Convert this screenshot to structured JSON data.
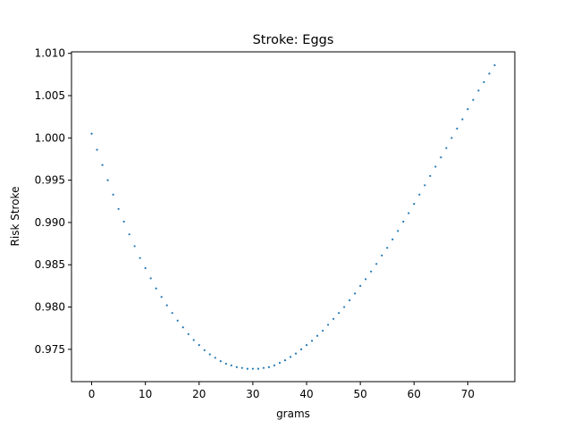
{
  "chart_data": {
    "type": "scatter",
    "title": "Stroke: Eggs",
    "xlabel": "grams",
    "ylabel": "Risk Stroke",
    "xlim": [
      -3.75,
      78.75
    ],
    "ylim": [
      0.97118,
      1.01018
    ],
    "xticks": [
      0,
      10,
      20,
      30,
      40,
      50,
      60,
      70
    ],
    "xtick_labels": [
      "0",
      "10",
      "20",
      "30",
      "40",
      "50",
      "60",
      "70"
    ],
    "yticks": [
      0.975,
      0.98,
      0.985,
      0.99,
      0.995,
      1.0,
      1.005,
      1.01
    ],
    "ytick_labels": [
      "0.975",
      "0.980",
      "0.985",
      "0.990",
      "0.995",
      "1.000",
      "1.005",
      "1.010"
    ],
    "grid": false,
    "series": [
      {
        "color": "#1f77b4",
        "marker": "point",
        "x": [
          0,
          1,
          2,
          3,
          4,
          5,
          6,
          7,
          8,
          9,
          10,
          11,
          12,
          13,
          14,
          15,
          16,
          17,
          18,
          19,
          20,
          21,
          22,
          23,
          24,
          25,
          26,
          27,
          28,
          29,
          30,
          31,
          32,
          33,
          34,
          35,
          36,
          37,
          38,
          39,
          40,
          41,
          42,
          43,
          44,
          45,
          46,
          47,
          48,
          49,
          50,
          51,
          52,
          53,
          54,
          55,
          56,
          57,
          58,
          59,
          60,
          61,
          62,
          63,
          64,
          65,
          66,
          67,
          68,
          69,
          70,
          71,
          72,
          73,
          74,
          75
        ],
        "y": [
          1.0005,
          0.9986,
          0.9968,
          0.995,
          0.9933,
          0.9916,
          0.9901,
          0.9886,
          0.9872,
          0.9858,
          0.9846,
          0.9834,
          0.9822,
          0.9812,
          0.9802,
          0.9793,
          0.9784,
          0.9776,
          0.9768,
          0.9761,
          0.9755,
          0.9749,
          0.9744,
          0.974,
          0.9736,
          0.9733,
          0.9731,
          0.9729,
          0.9728,
          0.9727,
          0.9727,
          0.9727,
          0.9728,
          0.9729,
          0.9731,
          0.9734,
          0.9737,
          0.9741,
          0.9745,
          0.975,
          0.9755,
          0.976,
          0.9766,
          0.9772,
          0.9779,
          0.9786,
          0.9793,
          0.98,
          0.9808,
          0.9816,
          0.9825,
          0.9833,
          0.9842,
          0.9851,
          0.9861,
          0.987,
          0.988,
          0.989,
          0.9901,
          0.9911,
          0.9922,
          0.9933,
          0.9944,
          0.9955,
          0.9966,
          0.9977,
          0.9988,
          1.0,
          1.0011,
          1.0022,
          1.0034,
          1.0045,
          1.0056,
          1.0066,
          1.0076,
          1.0086
        ]
      }
    ]
  }
}
